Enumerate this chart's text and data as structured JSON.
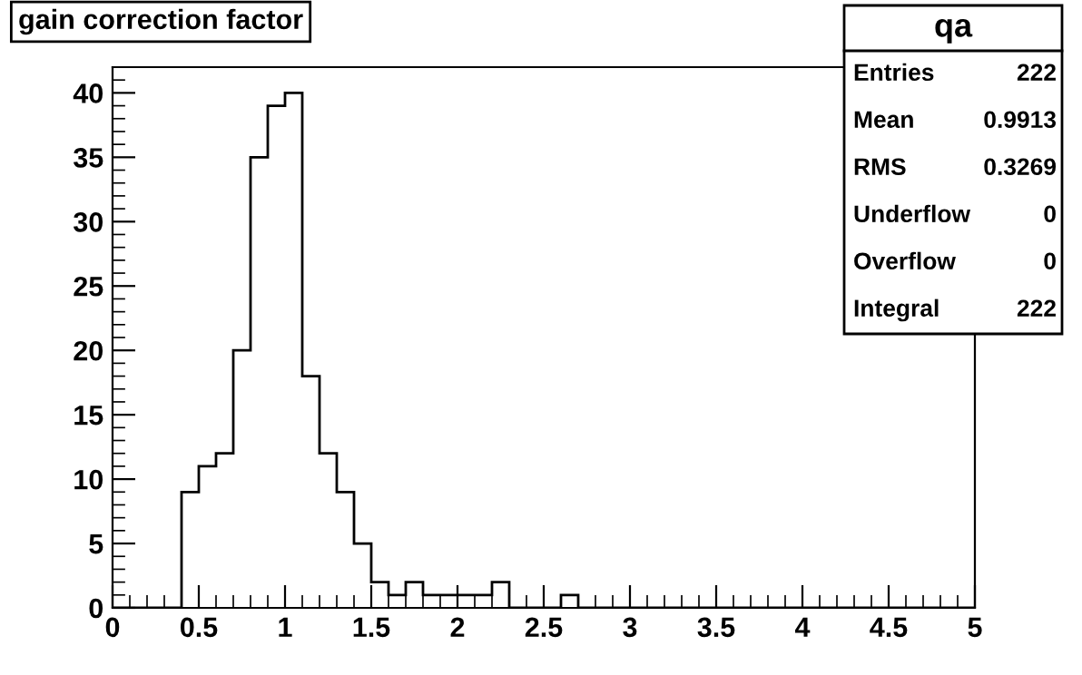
{
  "chart_data": {
    "type": "histogram",
    "title": "gain correction factor",
    "bins": [
      0,
      0.1,
      0.2,
      0.3,
      0.4,
      0.5,
      0.6,
      0.7,
      0.8,
      0.9,
      1.0,
      1.1,
      1.2,
      1.3,
      1.4,
      1.5,
      1.6,
      1.7,
      1.8,
      1.9,
      2.0,
      2.1,
      2.2,
      2.3,
      2.4,
      2.5,
      2.6,
      2.7,
      2.8,
      2.9,
      3.0,
      3.1,
      3.2,
      3.3,
      3.4,
      3.5,
      3.6,
      3.7,
      3.8,
      3.9,
      4.0,
      4.1,
      4.2,
      4.3,
      4.4,
      4.5,
      4.6,
      4.7,
      4.8,
      4.9,
      5.0
    ],
    "values": [
      0,
      0,
      0,
      0,
      9,
      11,
      12,
      20,
      35,
      39,
      40,
      18,
      12,
      9,
      5,
      2,
      1,
      2,
      1,
      1,
      1,
      1,
      2,
      0,
      0,
      0,
      1,
      0,
      0,
      0,
      0,
      0,
      0,
      0,
      0,
      0,
      0,
      0,
      0,
      0,
      0,
      0,
      0,
      0,
      0,
      0,
      0,
      0,
      0,
      0
    ],
    "color": "#000000",
    "xlim": [
      0,
      5
    ],
    "xticks": [
      0,
      0.5,
      1,
      1.5,
      2,
      2.5,
      3,
      3.5,
      4,
      4.5,
      5
    ],
    "ylim": [
      0,
      42
    ],
    "yticks": [
      0,
      5,
      10,
      15,
      20,
      25,
      30,
      35,
      40
    ],
    "grid": false,
    "annotations": [
      "qa",
      "Entries",
      "222",
      "Mean",
      "0.9913",
      "RMS",
      "0.3269",
      "Underflow",
      "0",
      "Overflow",
      "0",
      "Integral",
      "222"
    ]
  }
}
